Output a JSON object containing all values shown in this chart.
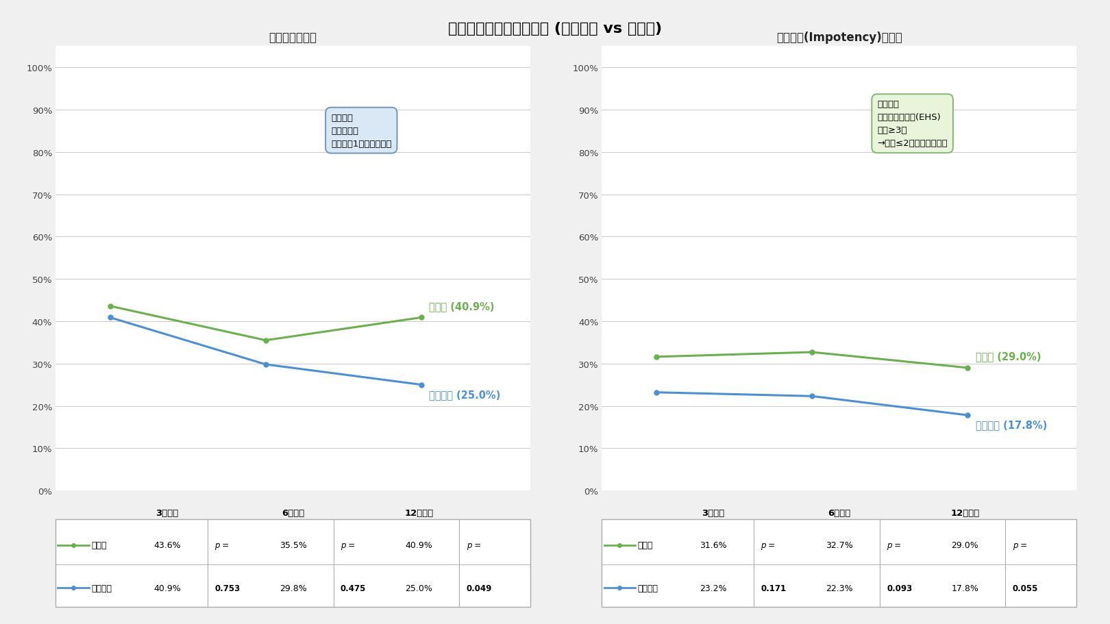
{
  "title": "アプローチ別障害発生率 (ロボット vs 腹腔鏡)",
  "left_subtitle": "射精障害発生率",
  "right_subtitle": "性交障害(Impotency)発生率",
  "x_labels": [
    "3ヶ月後",
    "6ヶ月後",
    "12ヶ月後"
  ],
  "left": {
    "laparoscopic": [
      43.6,
      35.5,
      40.9
    ],
    "robotic": [
      40.9,
      29.8,
      25.0
    ],
    "p_values": [
      "0.753",
      "0.475",
      "0.049"
    ],
    "label_lap": "腹腔鏡 (40.9%)",
    "label_rob": "ロボット (25.0%)",
    "annotation_title": "射精障害",
    "annotation_line1": "射精機能が",
    "annotation_line2": "術前より1点以上ダウン",
    "annotation_bg": "#dae8f5",
    "annotation_border": "#7799bb"
  },
  "right": {
    "laparoscopic": [
      31.6,
      32.7,
      29.0
    ],
    "robotic": [
      23.2,
      22.3,
      17.8
    ],
    "p_values": [
      "0.171",
      "0.093",
      "0.055"
    ],
    "label_lap": "腹腔鏡 (29.0%)",
    "label_rob": "ロボット (17.8%)",
    "annotation_title": "性交障害",
    "annotation_line1": "勃起高度スコア(EHS)",
    "annotation_line2": "術前≥3点",
    "annotation_line3": "→術後≤2点になった場合",
    "annotation_bg": "#e8f5da",
    "annotation_border": "#88bb77"
  },
  "color_lap": "#6ab04c",
  "color_rob": "#4a90d9",
  "ylim": [
    0,
    105
  ],
  "yticks": [
    0,
    10,
    20,
    30,
    40,
    50,
    60,
    70,
    80,
    90,
    100
  ],
  "ytick_labels": [
    "0%",
    "10%",
    "20%",
    "30%",
    "40%",
    "50%",
    "60%",
    "70%",
    "80%",
    "90%",
    "100%"
  ],
  "bg_color": "#f0f0f0",
  "table_lap_label": "腹腔鏡",
  "table_rob_label": "ロボット"
}
